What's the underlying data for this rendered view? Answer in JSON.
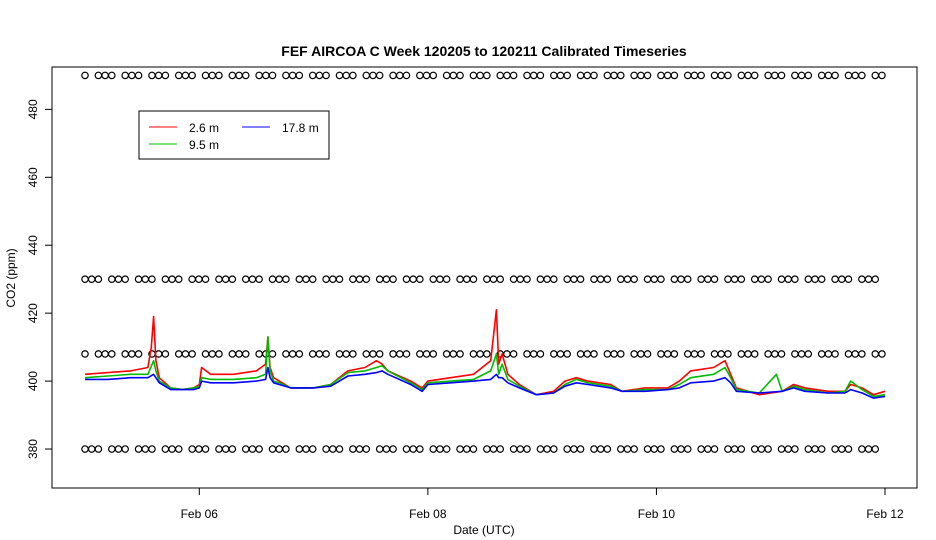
{
  "chart_data": {
    "type": "line",
    "title": "FEF AIRCOA C  Week 120205 to 120211  Calibrated Timeseries",
    "xlabel": "Date (UTC)",
    "ylabel": "CO2 (ppm)",
    "xlim": [
      5.0,
      12.0
    ],
    "ylim": [
      370,
      491
    ],
    "x_ticks": [
      {
        "value": 6,
        "label": "Feb 06"
      },
      {
        "value": 8,
        "label": "Feb 08"
      },
      {
        "value": 10,
        "label": "Feb 10"
      },
      {
        "value": 12,
        "label": "Feb 12"
      }
    ],
    "y_ticks": [
      380,
      400,
      420,
      440,
      460,
      480
    ],
    "grid": false,
    "legend_position": "top-left",
    "series": [
      {
        "name": "2.6 m",
        "color": "#ff0000",
        "x": [
          5.0,
          5.2,
          5.4,
          5.55,
          5.58,
          5.6,
          5.62,
          5.65,
          5.75,
          5.85,
          5.95,
          6.0,
          6.02,
          6.1,
          6.3,
          6.5,
          6.58,
          6.6,
          6.62,
          6.65,
          6.7,
          6.8,
          7.0,
          7.15,
          7.3,
          7.45,
          7.55,
          7.6,
          7.65,
          7.85,
          7.95,
          8.0,
          8.2,
          8.4,
          8.55,
          8.6,
          8.62,
          8.65,
          8.7,
          8.8,
          8.95,
          9.1,
          9.2,
          9.3,
          9.4,
          9.6,
          9.7,
          9.9,
          10.1,
          10.2,
          10.3,
          10.5,
          10.6,
          10.65,
          10.7,
          10.9,
          11.1,
          11.2,
          11.3,
          11.5,
          11.65,
          11.7,
          11.8,
          11.9,
          12.0
        ],
        "values": [
          402,
          402.5,
          403,
          404,
          410,
          419,
          406,
          401,
          398,
          397.5,
          398,
          399,
          404,
          402,
          402,
          403,
          405,
          413,
          404,
          401,
          400,
          398,
          398,
          399,
          403,
          404,
          406,
          405,
          403,
          400,
          398,
          400,
          401,
          402,
          406,
          421,
          405,
          408,
          402,
          399,
          396,
          397,
          400,
          401,
          400,
          399,
          397,
          398,
          398,
          400,
          403,
          404,
          406,
          402,
          398,
          396,
          397,
          399,
          398,
          397,
          397,
          399,
          398,
          396,
          397
        ]
      },
      {
        "name": "9.5 m",
        "color": "#00bb00",
        "x": [
          5.0,
          5.2,
          5.4,
          5.55,
          5.6,
          5.62,
          5.65,
          5.75,
          5.85,
          5.95,
          6.0,
          6.02,
          6.1,
          6.3,
          6.5,
          6.58,
          6.6,
          6.62,
          6.65,
          6.7,
          6.8,
          7.0,
          7.15,
          7.3,
          7.45,
          7.55,
          7.6,
          7.65,
          7.85,
          7.95,
          8.0,
          8.2,
          8.4,
          8.55,
          8.6,
          8.62,
          8.65,
          8.7,
          8.8,
          8.95,
          9.1,
          9.2,
          9.3,
          9.4,
          9.6,
          9.7,
          9.9,
          10.1,
          10.2,
          10.3,
          10.5,
          10.6,
          10.65,
          10.7,
          10.9,
          11.05,
          11.1,
          11.2,
          11.3,
          11.5,
          11.65,
          11.7,
          11.8,
          11.9,
          12.0
        ],
        "values": [
          401,
          401.5,
          402,
          402,
          406,
          403,
          400,
          398,
          397.5,
          398,
          398.5,
          401,
          400.5,
          400.5,
          401,
          402,
          413,
          403,
          400,
          399.5,
          398,
          398,
          399,
          402.5,
          403,
          404,
          404.5,
          403,
          399.5,
          397.5,
          399.5,
          400,
          400.5,
          403,
          408,
          402,
          405,
          400.5,
          398.5,
          396,
          396.5,
          399,
          400.5,
          399.5,
          398.5,
          397,
          397.5,
          397.5,
          399,
          401,
          402,
          404,
          401,
          397.5,
          396.5,
          402,
          397,
          398.5,
          397.5,
          396.5,
          397,
          400,
          397.5,
          395.5,
          396
        ]
      },
      {
        "name": "17.8 m",
        "color": "#0000ff",
        "x": [
          5.0,
          5.2,
          5.4,
          5.55,
          5.6,
          5.62,
          5.65,
          5.75,
          5.85,
          5.95,
          6.0,
          6.02,
          6.1,
          6.3,
          6.5,
          6.58,
          6.6,
          6.62,
          6.65,
          6.7,
          6.8,
          7.0,
          7.15,
          7.3,
          7.45,
          7.55,
          7.6,
          7.65,
          7.85,
          7.95,
          8.0,
          8.2,
          8.4,
          8.55,
          8.6,
          8.62,
          8.65,
          8.7,
          8.8,
          8.95,
          9.1,
          9.2,
          9.3,
          9.4,
          9.6,
          9.7,
          9.9,
          10.1,
          10.2,
          10.3,
          10.5,
          10.6,
          10.65,
          10.7,
          10.9,
          11.1,
          11.2,
          11.3,
          11.5,
          11.65,
          11.7,
          11.8,
          11.9,
          12.0
        ],
        "values": [
          400.5,
          400.5,
          401,
          401,
          402,
          401,
          399.5,
          397.5,
          397.5,
          397.5,
          398,
          400,
          399.5,
          399.5,
          400,
          400.5,
          404,
          401,
          399.5,
          399,
          398,
          398,
          398.5,
          401.5,
          402,
          402.5,
          403,
          402,
          399,
          397,
          399,
          399.5,
          400,
          400.5,
          402,
          401,
          401,
          399.5,
          398,
          396,
          396.5,
          398.5,
          399.5,
          399,
          398,
          397,
          397,
          397.5,
          398,
          399.5,
          400,
          401,
          399.5,
          397,
          396.5,
          397,
          398,
          397,
          396.5,
          396.5,
          397.5,
          396.5,
          395,
          395.5
        ]
      }
    ],
    "calibration_points": {
      "levels": [
        380,
        408,
        430,
        490
      ],
      "x_start": 5.0,
      "x_end": 12.0,
      "spacing": 0.0586,
      "gap_every": 4
    }
  }
}
